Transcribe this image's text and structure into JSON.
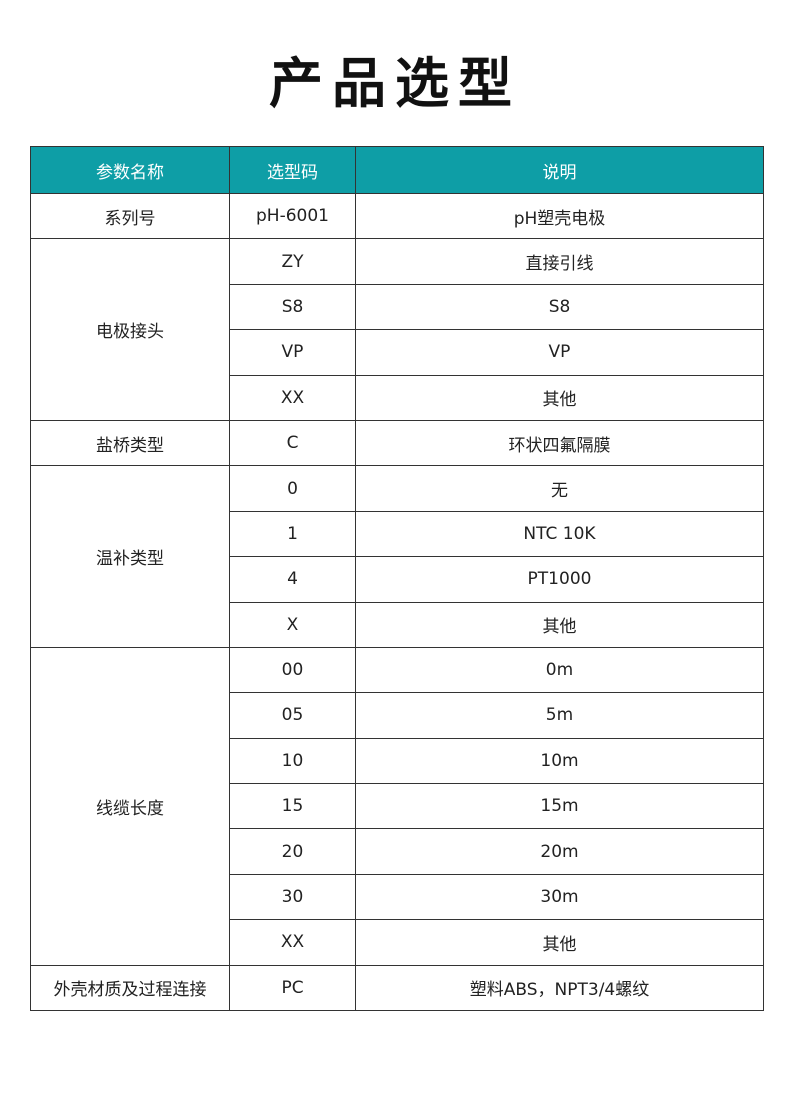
{
  "title": "产品选型",
  "table": {
    "headers": [
      "参数名称",
      "选型码",
      "说明"
    ],
    "header_color": "#0e9ea6",
    "groups": [
      {
        "param": "系列号",
        "rows": [
          [
            "pH-6001",
            "pH塑壳电极"
          ]
        ]
      },
      {
        "param": "电极接头",
        "rows": [
          [
            "ZY",
            "直接引线"
          ],
          [
            "S8",
            "S8"
          ],
          [
            "VP",
            "VP"
          ],
          [
            "XX",
            "其他"
          ]
        ]
      },
      {
        "param": "盐桥类型",
        "rows": [
          [
            "C",
            "环状四氟隔膜"
          ]
        ]
      },
      {
        "param": "温补类型",
        "rows": [
          [
            "0",
            "无"
          ],
          [
            "1",
            "NTC 10K"
          ],
          [
            "4",
            "PT1000"
          ],
          [
            "X",
            "其他"
          ]
        ]
      },
      {
        "param": "线缆长度",
        "rows": [
          [
            "00",
            "0m"
          ],
          [
            "05",
            "5m"
          ],
          [
            "10",
            "10m"
          ],
          [
            "15",
            "15m"
          ],
          [
            "20",
            "20m"
          ],
          [
            "30",
            "30m"
          ],
          [
            "XX",
            "其他"
          ]
        ]
      },
      {
        "param": "外壳材质及过程连接",
        "rows": [
          [
            "PC",
            "塑料ABS，NPT3/4螺纹"
          ]
        ]
      }
    ]
  }
}
